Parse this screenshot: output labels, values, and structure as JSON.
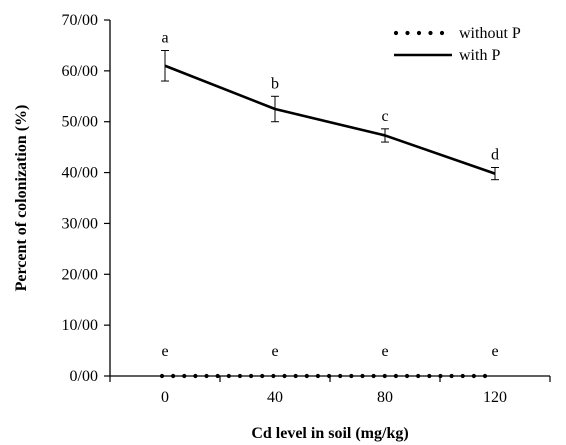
{
  "chart_data": {
    "type": "line",
    "title": "",
    "xlabel": "Cd level in soil (mg/kg)",
    "ylabel": "Percent of colonization (%)",
    "x": [
      0,
      40,
      80,
      120
    ],
    "x_tick_labels": [
      "0",
      "40",
      "80",
      "120"
    ],
    "xlim": [
      -20,
      140
    ],
    "ylim": [
      0,
      70
    ],
    "y_ticks": [
      0,
      10,
      20,
      30,
      40,
      50,
      60,
      70
    ],
    "y_tick_labels": [
      "0/00",
      "10/00",
      "20/00",
      "30/00",
      "40/00",
      "50/00",
      "60/00",
      "70/00"
    ],
    "grid": false,
    "legend_position": "top-right",
    "series": [
      {
        "name": "without P",
        "style": "dotted",
        "color": "#000000",
        "values": [
          0,
          0,
          0,
          0
        ],
        "letters": [
          "e",
          "e",
          "e",
          "e"
        ]
      },
      {
        "name": "with P",
        "style": "solid",
        "color": "#000000",
        "values": [
          61,
          52.5,
          47.3,
          39.8
        ],
        "errors": [
          3,
          2.5,
          1.3,
          1.2
        ],
        "letters": [
          "a",
          "b",
          "c",
          "d"
        ]
      }
    ]
  }
}
